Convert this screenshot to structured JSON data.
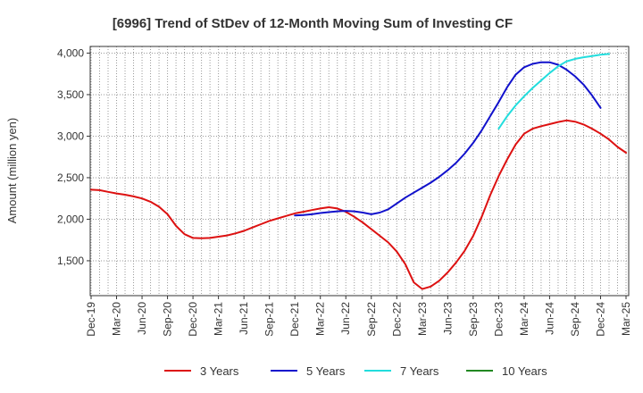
{
  "chart_data": {
    "type": "line",
    "title": "[6996]  Trend of StDev of 12-Month Moving Sum of Investing CF",
    "xlabel": "",
    "ylabel": "Amount (million yen)",
    "ylim": [
      1080,
      4080
    ],
    "yticks": [
      1500,
      2000,
      2500,
      3000,
      3500,
      4000
    ],
    "ytick_labels": [
      "1,500",
      "2,000",
      "2,500",
      "3,000",
      "3,500",
      "4,000"
    ],
    "xtick_labels": [
      "Dec-19",
      "Mar-20",
      "Jun-20",
      "Sep-20",
      "Dec-20",
      "Mar-21",
      "Jun-21",
      "Sep-21",
      "Dec-21",
      "Mar-22",
      "Jun-22",
      "Sep-22",
      "Dec-22",
      "Mar-23",
      "Jun-23",
      "Sep-23",
      "Dec-23",
      "Mar-24",
      "Jun-24",
      "Sep-24",
      "Dec-24",
      "Mar-25"
    ],
    "x_start": "Dec-19",
    "grid": true,
    "legend_position": "bottom",
    "series": [
      {
        "name": "3 Years",
        "color": "#dd1111",
        "start_index": 0,
        "values": [
          2355,
          2350,
          2330,
          2310,
          2295,
          2275,
          2250,
          2210,
          2150,
          2060,
          1920,
          1820,
          1775,
          1770,
          1775,
          1790,
          1805,
          1830,
          1860,
          1900,
          1940,
          1980,
          2010,
          2040,
          2070,
          2090,
          2110,
          2130,
          2145,
          2130,
          2090,
          2030,
          1960,
          1880,
          1800,
          1720,
          1610,
          1460,
          1240,
          1160,
          1190,
          1260,
          1360,
          1480,
          1620,
          1800,
          2030,
          2290,
          2520,
          2720,
          2900,
          3030,
          3090,
          3120,
          3145,
          3170,
          3190,
          3175,
          3140,
          3090,
          3030,
          2960,
          2870,
          2800
        ]
      },
      {
        "name": "5 Years",
        "color": "#1111cc",
        "start_index": 24,
        "values": [
          2045,
          2050,
          2060,
          2075,
          2085,
          2095,
          2100,
          2095,
          2080,
          2060,
          2080,
          2120,
          2190,
          2260,
          2320,
          2380,
          2440,
          2510,
          2590,
          2680,
          2790,
          2920,
          3070,
          3240,
          3410,
          3590,
          3740,
          3830,
          3870,
          3890,
          3890,
          3860,
          3800,
          3720,
          3620,
          3490,
          3340
        ]
      },
      {
        "name": "7 Years",
        "color": "#22dddd",
        "start_index": 48,
        "values": [
          3090,
          3240,
          3370,
          3480,
          3580,
          3670,
          3760,
          3840,
          3900,
          3930,
          3950,
          3965,
          3980,
          3990
        ]
      },
      {
        "name": "10 Years",
        "color": "#228822",
        "start_index": 0,
        "values": []
      }
    ]
  }
}
